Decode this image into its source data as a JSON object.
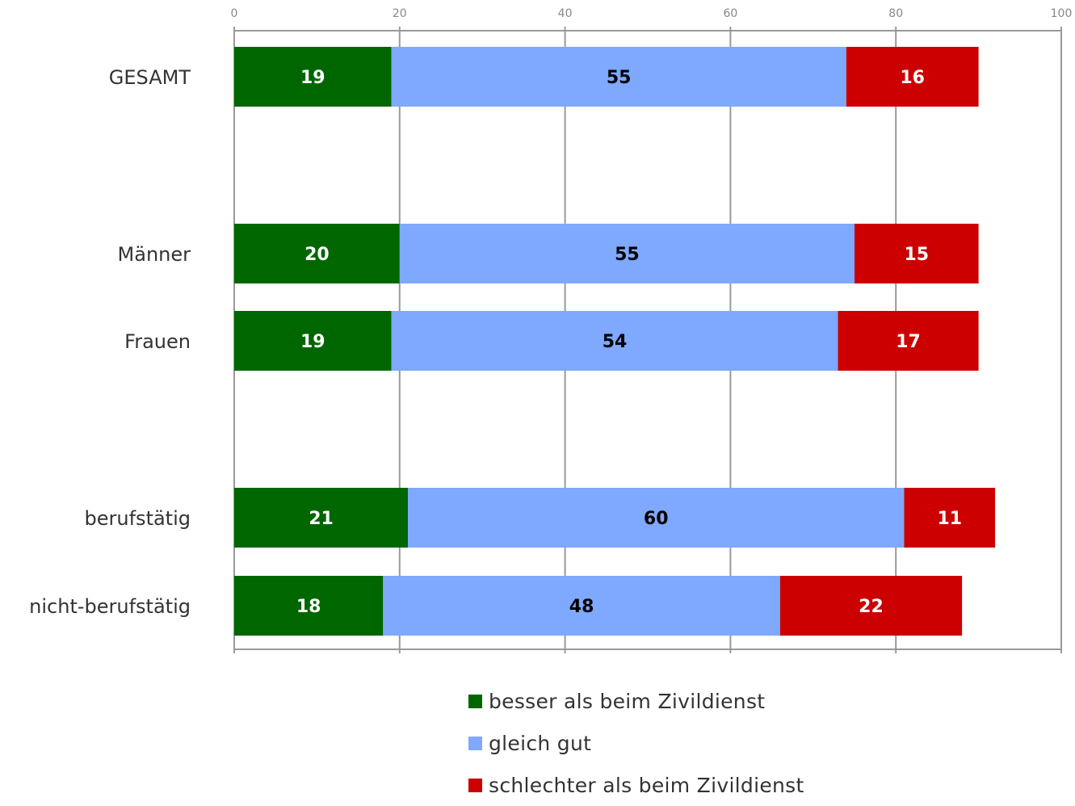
{
  "chart_data": {
    "type": "bar",
    "orientation": "horizontal",
    "stacked": true,
    "categories": [
      "GESAMT",
      "Männer",
      "Frauen",
      "berufstätig",
      "nicht-berufstätig"
    ],
    "series": [
      {
        "name": "besser als beim Zivildienst",
        "color": "#006600",
        "label_color": "#ffffff",
        "values": [
          19,
          20,
          19,
          21,
          18
        ]
      },
      {
        "name": "gleich gut",
        "color": "#7fa8ff",
        "label_color": "#000000",
        "values": [
          55,
          55,
          54,
          60,
          48
        ]
      },
      {
        "name": "schlechter als beim Zivildienst",
        "color": "#cc0000",
        "label_color": "#ffffff",
        "values": [
          16,
          15,
          17,
          11,
          22
        ]
      }
    ],
    "x_ticks": [
      "0",
      "20",
      "40",
      "60",
      "80",
      "100"
    ],
    "xlim": [
      0,
      100
    ],
    "grid": true,
    "legend_position": "bottom"
  }
}
